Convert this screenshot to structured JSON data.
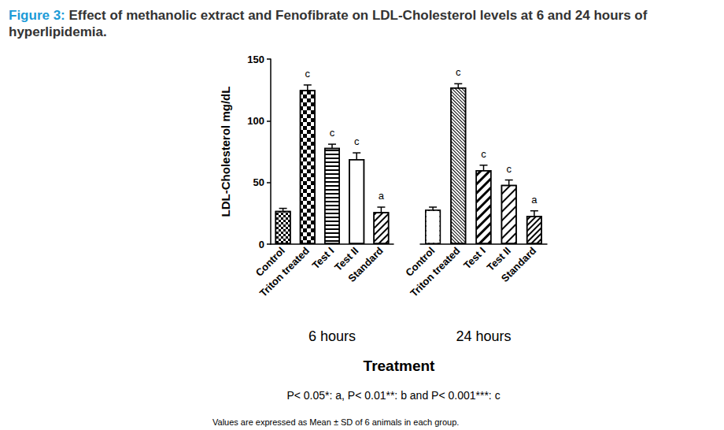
{
  "chart_data": {
    "type": "bar",
    "title": "Figure 3: Effect of methanolic extract and Fenofibrate on LDL-Cholesterol levels at 6 and 24 hours of hyperlipidemia.",
    "y_label": "LDL-Cholesterol mg/dL",
    "x_label": "Treatment",
    "categories": [
      "Control",
      "Triton treated",
      "Test I",
      "Test II",
      "Standard"
    ],
    "series": [
      {
        "name": "6 hours",
        "values": [
          27,
          125,
          78,
          69,
          26
        ],
        "errors": [
          2,
          4,
          3,
          5,
          4
        ],
        "annotations": [
          null,
          "c",
          "c",
          "c",
          "a"
        ]
      },
      {
        "name": "24 hours",
        "values": [
          28,
          127,
          60,
          48,
          23
        ],
        "errors": [
          2,
          3,
          4,
          4,
          4
        ],
        "annotations": [
          null,
          "c",
          "c",
          "c",
          "a"
        ]
      }
    ],
    "color": "#000000",
    "ylim": [
      0,
      150
    ],
    "yticks": [
      0,
      50,
      100,
      150
    ],
    "grid": false,
    "notes": [
      "P< 0.05*: a, P< 0.01**: b and P< 0.001***: c",
      "Values are expressed as Mean ± SD of 6 animals in each group."
    ]
  }
}
